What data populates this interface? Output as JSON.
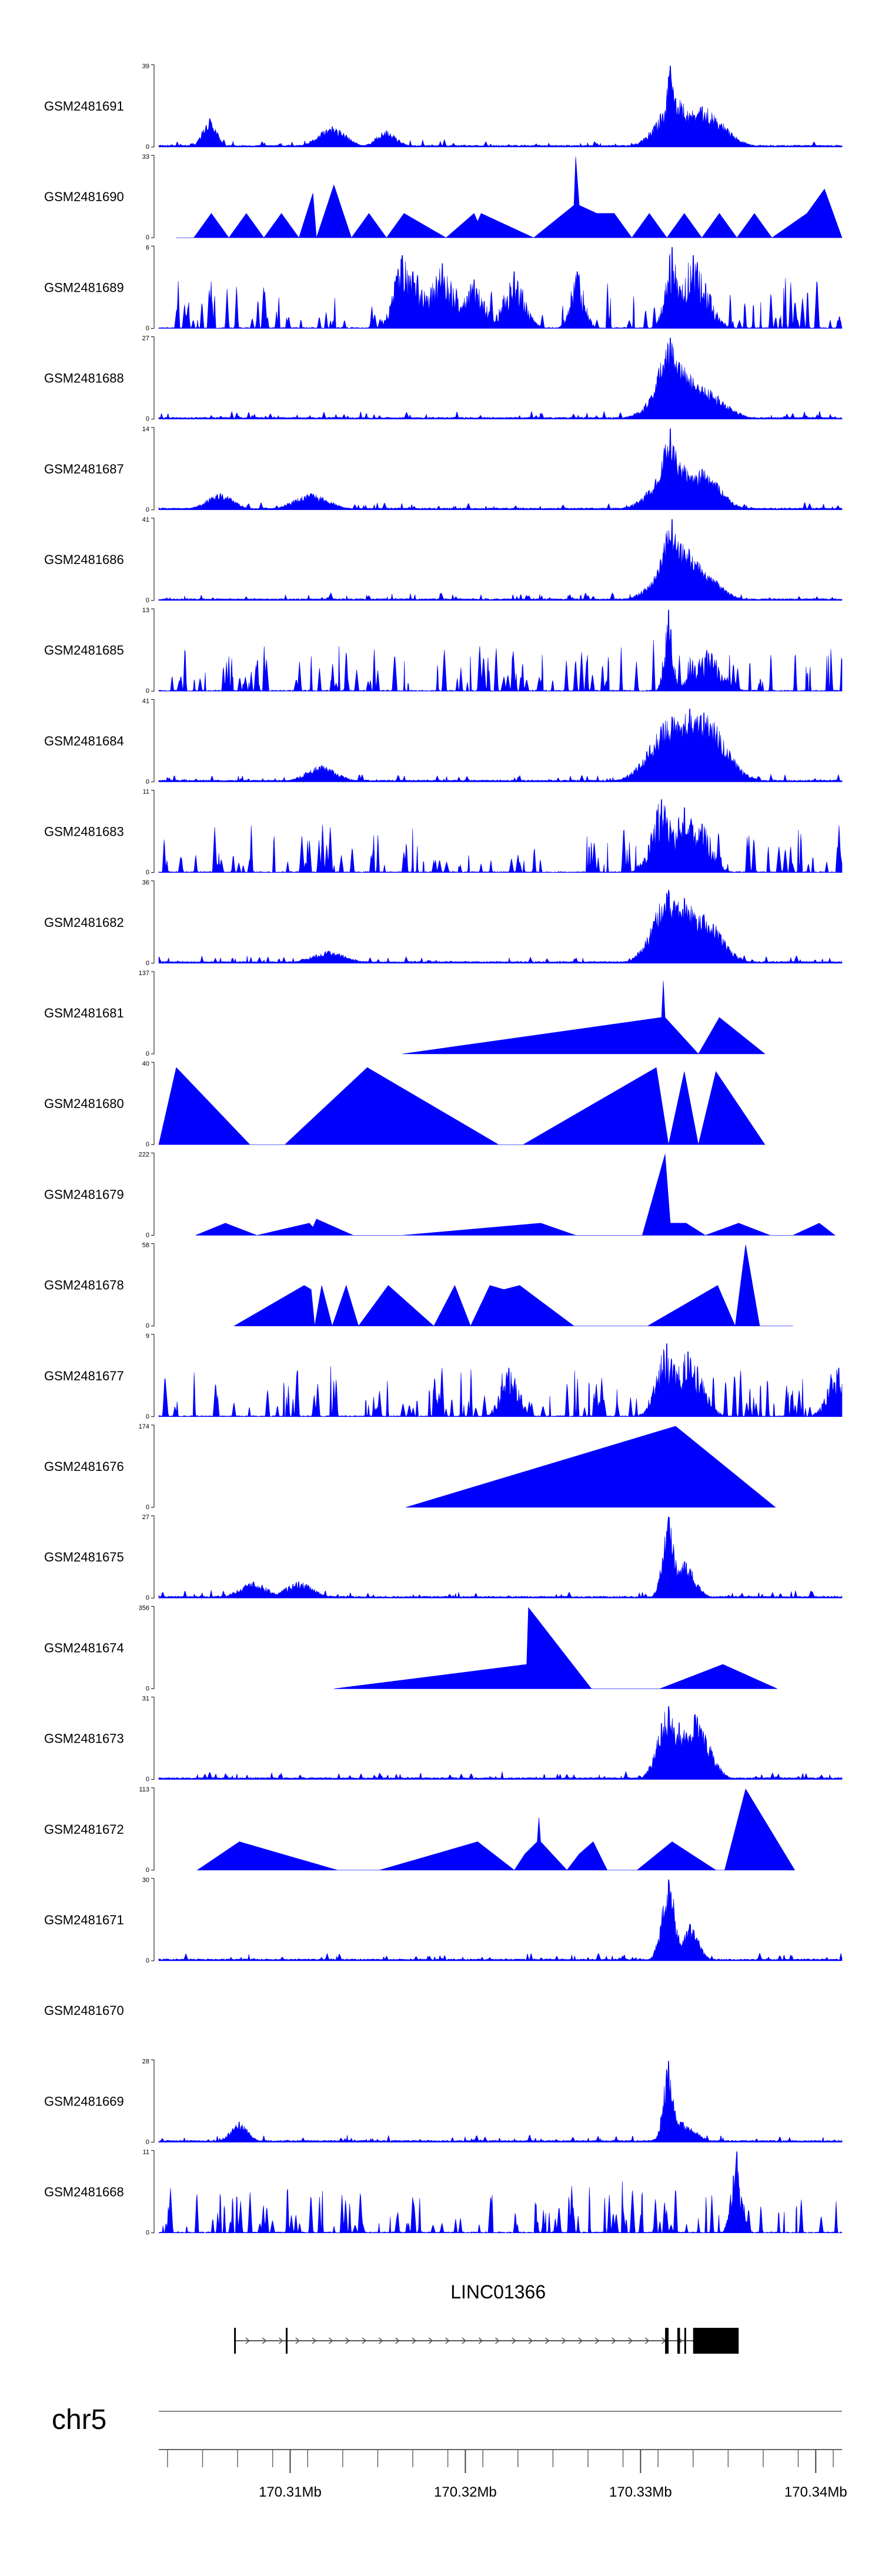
{
  "chart_data": {
    "type": "area",
    "title": "",
    "chromosome": "chr5",
    "x_range_mb": [
      170.3025,
      170.3415
    ],
    "colors": {
      "signal": "#0000ff",
      "axis": "#000000",
      "gene": "#000000",
      "genome_line": "#888888"
    },
    "tracks": [
      {
        "name": "GSM2481691",
        "ymax": 39,
        "ymin": 0,
        "style": "dense",
        "seed": 11,
        "peaks": [
          [
            170.3054,
            0.35,
            0.0004
          ],
          [
            170.3124,
            0.25,
            0.0008
          ],
          [
            170.3155,
            0.2,
            0.0006
          ],
          [
            170.3317,
            1.0,
            0.00025
          ],
          [
            170.332,
            0.6,
            0.001
          ],
          [
            170.3335,
            0.5,
            0.0012
          ]
        ]
      },
      {
        "name": "GSM2481690",
        "ymax": 33,
        "ymin": 0,
        "style": "triangles",
        "points": [
          [
            170.3035,
            0
          ],
          [
            170.3045,
            0
          ],
          [
            170.3055,
            0.3
          ],
          [
            170.3065,
            0
          ],
          [
            170.3075,
            0.3
          ],
          [
            170.3085,
            0
          ],
          [
            170.3095,
            0.3
          ],
          [
            170.3105,
            0
          ],
          [
            170.3113,
            0.55
          ],
          [
            170.3115,
            0
          ],
          [
            170.3125,
            0.65
          ],
          [
            170.3135,
            0
          ],
          [
            170.3145,
            0.3
          ],
          [
            170.3155,
            0
          ],
          [
            170.3165,
            0.3
          ],
          [
            170.3189,
            0
          ],
          [
            170.3205,
            0.3
          ],
          [
            170.3207,
            0.2
          ],
          [
            170.3209,
            0.3
          ],
          [
            170.3239,
            0
          ],
          [
            170.3262,
            0.4
          ],
          [
            170.3263,
            1.0
          ],
          [
            170.3265,
            0.4
          ],
          [
            170.3275,
            0.3
          ],
          [
            170.3285,
            0.3
          ],
          [
            170.3295,
            0
          ],
          [
            170.3305,
            0.3
          ],
          [
            170.3315,
            0
          ],
          [
            170.3325,
            0.3
          ],
          [
            170.3335,
            0
          ],
          [
            170.3345,
            0.3
          ],
          [
            170.3355,
            0
          ],
          [
            170.3365,
            0.3
          ],
          [
            170.3375,
            0
          ],
          [
            170.3395,
            0.3
          ],
          [
            170.3405,
            0.6
          ],
          [
            170.3415,
            0
          ]
        ]
      },
      {
        "name": "GSM2481689",
        "ymax": 6,
        "ymin": 0,
        "style": "spiky",
        "seed": 23,
        "peaks": [
          [
            170.3164,
            0.9,
            0.0005
          ],
          [
            170.317,
            0.7,
            0.0008
          ],
          [
            170.3187,
            0.8,
            0.0008
          ],
          [
            170.3205,
            0.6,
            0.0006
          ],
          [
            170.3228,
            0.7,
            0.0006
          ],
          [
            170.3264,
            0.7,
            0.0004
          ],
          [
            170.3318,
            1.0,
            0.0004
          ],
          [
            170.333,
            0.9,
            0.0008
          ]
        ]
      },
      {
        "name": "GSM2481688",
        "ymax": 27,
        "ymin": 0,
        "style": "dense",
        "seed": 31,
        "peaks": [
          [
            170.3317,
            1.0,
            0.0007
          ],
          [
            170.3322,
            0.7,
            0.0012
          ],
          [
            170.3335,
            0.4,
            0.0012
          ]
        ]
      },
      {
        "name": "GSM2481687",
        "ymax": 14,
        "ymin": 0,
        "style": "dense",
        "seed": 37,
        "peaks": [
          [
            170.306,
            0.2,
            0.0008
          ],
          [
            170.3112,
            0.2,
            0.001
          ],
          [
            170.3317,
            1.0,
            0.0005
          ],
          [
            170.332,
            0.6,
            0.0012
          ],
          [
            170.3335,
            0.5,
            0.001
          ]
        ]
      },
      {
        "name": "GSM2481686",
        "ymax": 41,
        "ymin": 0,
        "style": "dense",
        "seed": 41,
        "peaks": [
          [
            170.3318,
            1.0,
            0.0006
          ],
          [
            170.3323,
            0.7,
            0.0012
          ],
          [
            170.3335,
            0.35,
            0.001
          ]
        ]
      },
      {
        "name": "GSM2481685",
        "ymax": 13,
        "ymin": 0,
        "style": "spiky",
        "seed": 43,
        "peaks": [
          [
            170.3316,
            1.0,
            0.00025
          ],
          [
            170.3338,
            0.5,
            0.0008
          ]
        ]
      },
      {
        "name": "GSM2481684",
        "ymax": 41,
        "ymin": 0,
        "style": "dense",
        "seed": 47,
        "peaks": [
          [
            170.3118,
            0.2,
            0.0009
          ],
          [
            170.3318,
            0.8,
            0.0012
          ],
          [
            170.3328,
            0.9,
            0.0012
          ],
          [
            170.3336,
            0.85,
            0.0012
          ]
        ]
      },
      {
        "name": "GSM2481683",
        "ymax": 11,
        "ymin": 0,
        "style": "spiky",
        "seed": 53,
        "peaks": [
          [
            170.3312,
            0.9,
            0.0006
          ],
          [
            170.3325,
            0.8,
            0.0008
          ],
          [
            170.3335,
            0.6,
            0.0006
          ]
        ]
      },
      {
        "name": "GSM2481682",
        "ymax": 36,
        "ymin": 0,
        "style": "dense",
        "seed": 59,
        "peaks": [
          [
            170.3122,
            0.15,
            0.001
          ],
          [
            170.3316,
            0.9,
            0.0009
          ],
          [
            170.3325,
            0.8,
            0.0012
          ],
          [
            170.3336,
            0.6,
            0.001
          ]
        ]
      },
      {
        "name": "GSM2481681",
        "ymax": 137,
        "ymin": 0,
        "style": "triangles",
        "points": [
          [
            170.3164,
            0
          ],
          [
            170.3312,
            0.45
          ],
          [
            170.3313,
            0.9
          ],
          [
            170.3314,
            0.45
          ],
          [
            170.3333,
            0
          ],
          [
            170.3345,
            0.45
          ],
          [
            170.3371,
            0
          ]
        ]
      },
      {
        "name": "GSM2481680",
        "ymax": 40,
        "ymin": 0,
        "style": "triangles",
        "points": [
          [
            170.3025,
            0
          ],
          [
            170.3035,
            0.95
          ],
          [
            170.3077,
            0
          ],
          [
            170.3097,
            0
          ],
          [
            170.3144,
            0.95
          ],
          [
            170.3219,
            0
          ],
          [
            170.3233,
            0
          ],
          [
            170.3309,
            0.95
          ],
          [
            170.3316,
            0
          ],
          [
            170.3325,
            0.9
          ],
          [
            170.3333,
            0
          ],
          [
            170.3343,
            0.9
          ],
          [
            170.3371,
            0
          ]
        ]
      },
      {
        "name": "GSM2481679",
        "ymax": 222,
        "ymin": 0,
        "style": "triangles",
        "points": [
          [
            170.3046,
            0
          ],
          [
            170.3063,
            0.15
          ],
          [
            170.3081,
            0
          ],
          [
            170.3111,
            0.15
          ],
          [
            170.3113,
            0.1
          ],
          [
            170.3115,
            0.2
          ],
          [
            170.3136,
            0
          ],
          [
            170.3164,
            0
          ],
          [
            170.3243,
            0.15
          ],
          [
            170.3263,
            0
          ],
          [
            170.3301,
            0
          ],
          [
            170.3314,
            1.0
          ],
          [
            170.3317,
            0.15
          ],
          [
            170.3326,
            0.15
          ],
          [
            170.3337,
            0
          ],
          [
            170.3356,
            0.15
          ],
          [
            170.3374,
            0
          ],
          [
            170.3387,
            0
          ],
          [
            170.3402,
            0.15
          ],
          [
            170.3411,
            0
          ]
        ]
      },
      {
        "name": "GSM2481678",
        "ymax": 58,
        "ymin": 0,
        "style": "triangles",
        "points": [
          [
            170.3068,
            0
          ],
          [
            170.3108,
            0.5
          ],
          [
            170.3112,
            0.45
          ],
          [
            170.3114,
            0
          ],
          [
            170.3118,
            0.5
          ],
          [
            170.3124,
            0
          ],
          [
            170.3132,
            0.5
          ],
          [
            170.3139,
            0
          ],
          [
            170.3156,
            0.5
          ],
          [
            170.3182,
            0
          ],
          [
            170.3194,
            0.5
          ],
          [
            170.3203,
            0
          ],
          [
            170.3214,
            0.5
          ],
          [
            170.3222,
            0.45
          ],
          [
            170.3231,
            0.5
          ],
          [
            170.3262,
            0
          ],
          [
            170.3304,
            0
          ],
          [
            170.3344,
            0.5
          ],
          [
            170.3354,
            0
          ],
          [
            170.336,
            1.0
          ],
          [
            170.3368,
            0
          ],
          [
            170.3387,
            0
          ]
        ]
      },
      {
        "name": "GSM2481677",
        "ymax": 9,
        "ymin": 0,
        "style": "spiky",
        "seed": 61,
        "peaks": [
          [
            170.3225,
            0.6,
            0.0005
          ],
          [
            170.3315,
            0.9,
            0.0006
          ],
          [
            170.3327,
            0.8,
            0.0008
          ],
          [
            170.3413,
            0.6,
            0.0006
          ]
        ]
      },
      {
        "name": "GSM2481676",
        "ymax": 174,
        "ymin": 0,
        "style": "triangles",
        "points": [
          [
            170.3166,
            0
          ],
          [
            170.332,
            1.0
          ],
          [
            170.3377,
            0
          ]
        ]
      },
      {
        "name": "GSM2481675",
        "ymax": 27,
        "ymin": 0,
        "style": "dense",
        "seed": 67,
        "peaks": [
          [
            170.3079,
            0.2,
            0.0008
          ],
          [
            170.3105,
            0.2,
            0.0008
          ],
          [
            170.3316,
            1.0,
            0.00035
          ],
          [
            170.3325,
            0.45,
            0.0006
          ]
        ]
      },
      {
        "name": "GSM2481674",
        "ymax": 356,
        "ymin": 0,
        "style": "triangles",
        "points": [
          [
            170.3125,
            0
          ],
          [
            170.3235,
            0.3
          ],
          [
            170.3236,
            1.0
          ],
          [
            170.3272,
            0
          ],
          [
            170.3311,
            0
          ],
          [
            170.3347,
            0.3
          ],
          [
            170.3378,
            0
          ]
        ]
      },
      {
        "name": "GSM2481673",
        "ymax": 31,
        "ymin": 0,
        "style": "dense",
        "seed": 71,
        "peaks": [
          [
            170.3316,
            0.9,
            0.0006
          ],
          [
            170.3322,
            0.7,
            0.0008
          ],
          [
            170.3331,
            0.8,
            0.0008
          ]
        ]
      },
      {
        "name": "GSM2481672",
        "ymax": 113,
        "ymin": 0,
        "style": "triangles",
        "points": [
          [
            170.3047,
            0
          ],
          [
            170.3071,
            0.35
          ],
          [
            170.3127,
            0
          ],
          [
            170.3151,
            0
          ],
          [
            170.3207,
            0.35
          ],
          [
            170.3228,
            0
          ],
          [
            170.3234,
            0.2
          ],
          [
            170.3241,
            0.35
          ],
          [
            170.3242,
            0.65
          ],
          [
            170.3243,
            0.35
          ],
          [
            170.3258,
            0
          ],
          [
            170.3265,
            0.2
          ],
          [
            170.3273,
            0.35
          ],
          [
            170.3281,
            0
          ],
          [
            170.3298,
            0
          ],
          [
            170.3318,
            0.35
          ],
          [
            170.3343,
            0
          ],
          [
            170.3348,
            0
          ],
          [
            170.336,
            1.0
          ],
          [
            170.3388,
            0
          ]
        ]
      },
      {
        "name": "GSM2481671",
        "ymax": 30,
        "ymin": 0,
        "style": "dense",
        "seed": 73,
        "peaks": [
          [
            170.3316,
            1.0,
            0.0004
          ],
          [
            170.3328,
            0.45,
            0.0005
          ]
        ]
      },
      {
        "name": "GSM2481670",
        "ymax": null,
        "ymin": null,
        "style": "empty"
      },
      {
        "name": "GSM2481669",
        "ymax": 28,
        "ymin": 0,
        "style": "dense",
        "seed": 79,
        "peaks": [
          [
            170.3071,
            0.25,
            0.0005
          ],
          [
            170.3316,
            1.0,
            0.0003
          ],
          [
            170.3323,
            0.25,
            0.0008
          ]
        ]
      },
      {
        "name": "GSM2481668",
        "ymax": 11,
        "ymin": 0,
        "style": "spiky",
        "seed": 83,
        "peaks": [
          [
            170.3355,
            1.0,
            0.0003
          ]
        ]
      }
    ],
    "gene": {
      "name": "LINC01366",
      "strand": "+",
      "start_mb": 170.3068,
      "end_mb": 170.3356,
      "exons": [
        [
          170.3068,
          170.30686
        ],
        [
          170.30975,
          170.30985
        ],
        [
          170.3314,
          170.3316
        ],
        [
          170.3321,
          170.33225
        ],
        [
          170.3325,
          170.3326
        ],
        [
          170.333,
          170.3356
        ]
      ]
    },
    "axis": {
      "name": "chr5",
      "ticks_mb": [
        170.303,
        170.305,
        170.307,
        170.309,
        170.311,
        170.313,
        170.315,
        170.317,
        170.319,
        170.321,
        170.323,
        170.325,
        170.327,
        170.329,
        170.331,
        170.333,
        170.335,
        170.337,
        170.339,
        170.341
      ],
      "major_ticks": [
        {
          "value": 170.31,
          "label": "170.31Mb"
        },
        {
          "value": 170.32,
          "label": "170.32Mb"
        },
        {
          "value": 170.33,
          "label": "170.33Mb"
        },
        {
          "value": 170.34,
          "label": "170.34Mb"
        }
      ]
    }
  }
}
